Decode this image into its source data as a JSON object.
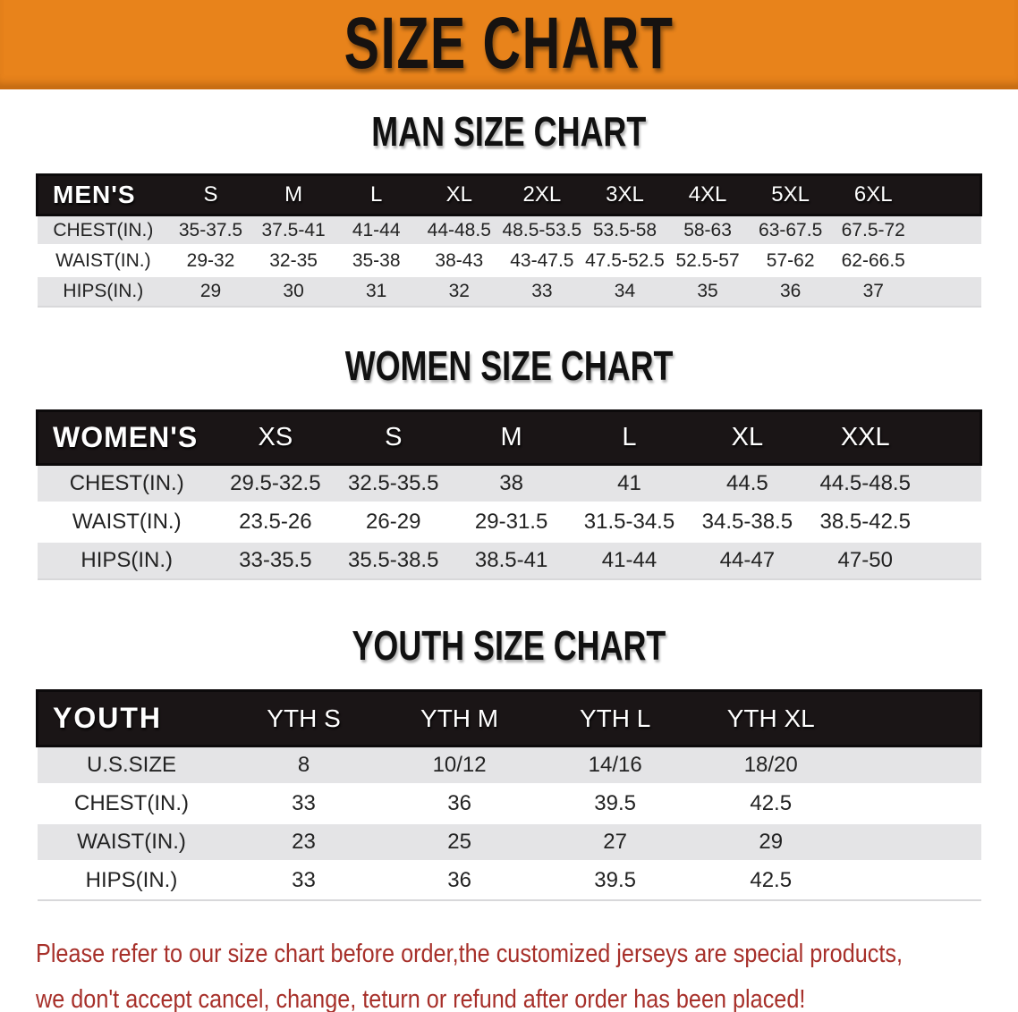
{
  "banner": {
    "title": "SIZE CHART"
  },
  "colors": {
    "banner_bg": "#E8831B",
    "header_bar_bg": "#1A1516",
    "row_stripe_bg": "#E4E4E6",
    "disclaimer_red": "#A7302A"
  },
  "sections": [
    {
      "id": "men",
      "title": "MAN SIZE CHART",
      "header_label": "MEN'S",
      "columns": [
        "S",
        "M",
        "L",
        "XL",
        "2XL",
        "3XL",
        "4XL",
        "5XL",
        "6XL"
      ],
      "rows": [
        {
          "label": "CHEST(IN.)",
          "values": [
            "35-37.5",
            "37.5-41",
            "41-44",
            "44-48.5",
            "48.5-53.5",
            "53.5-58",
            "58-63",
            "63-67.5",
            "67.5-72"
          ]
        },
        {
          "label": "WAIST(IN.)",
          "values": [
            "29-32",
            "32-35",
            "35-38",
            "38-43",
            "43-47.5",
            "47.5-52.5",
            "52.5-57",
            "57-62",
            "62-66.5"
          ]
        },
        {
          "label": "HIPS(IN.)",
          "values": [
            "29",
            "30",
            "31",
            "32",
            "33",
            "34",
            "35",
            "36",
            "37"
          ]
        }
      ]
    },
    {
      "id": "women",
      "title": "WOMEN SIZE CHART",
      "header_label": "WOMEN'S",
      "columns": [
        "XS",
        "S",
        "M",
        "L",
        "XL",
        "XXL"
      ],
      "rows": [
        {
          "label": "CHEST(IN.)",
          "values": [
            "29.5-32.5",
            "32.5-35.5",
            "38",
            "41",
            "44.5",
            "44.5-48.5"
          ]
        },
        {
          "label": "WAIST(IN.)",
          "values": [
            "23.5-26",
            "26-29",
            "29-31.5",
            "31.5-34.5",
            "34.5-38.5",
            "38.5-42.5"
          ]
        },
        {
          "label": "HIPS(IN.)",
          "values": [
            "33-35.5",
            "35.5-38.5",
            "38.5-41",
            "41-44",
            "44-47",
            "47-50"
          ]
        }
      ]
    },
    {
      "id": "youth",
      "title": "YOUTH SIZE CHART",
      "header_label": "YOUTH",
      "columns": [
        "YTH S",
        "YTH M",
        "YTH L",
        "YTH XL"
      ],
      "rows": [
        {
          "label": "U.S.SIZE",
          "values": [
            "8",
            "10/12",
            "14/16",
            "18/20"
          ]
        },
        {
          "label": "CHEST(IN.)",
          "values": [
            "33",
            "36",
            "39.5",
            "42.5"
          ]
        },
        {
          "label": "WAIST(IN.)",
          "values": [
            "23",
            "25",
            "27",
            "29"
          ]
        },
        {
          "label": "HIPS(IN.)",
          "values": [
            "33",
            "36",
            "39.5",
            "42.5"
          ]
        }
      ]
    }
  ],
  "disclaimer": {
    "line1": "Please refer to our size chart before order,the customized jerseys are special products,",
    "line2": "we don't accept cancel, change, teturn or refund after order has been placed!"
  }
}
